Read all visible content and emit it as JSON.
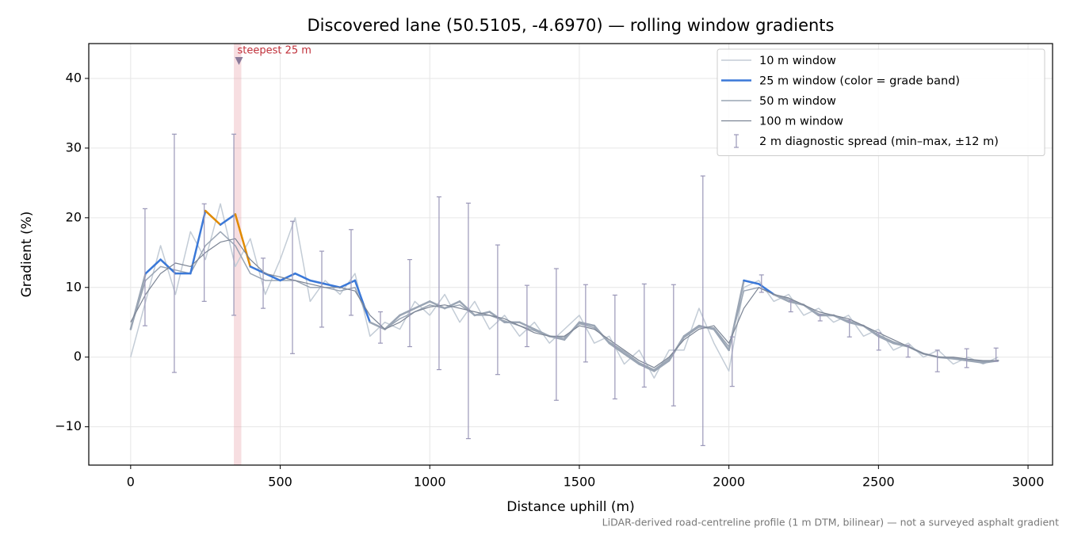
{
  "chart_data": {
    "type": "line",
    "title": "Discovered lane (50.5105, -4.6970) — rolling window gradients",
    "xlabel": "Distance uphill (m)",
    "ylabel": "Gradient (%)",
    "note": "LiDAR-derived road-centreline profile (1 m DTM, bilinear) — not a surveyed asphalt gradient",
    "xlim": [
      -140,
      3082
    ],
    "ylim": [
      -15.5,
      45
    ],
    "xticks": [
      0,
      500,
      1000,
      1500,
      2000,
      2500,
      3000
    ],
    "yticks": [
      {
        "value": -10,
        "label": "−10"
      },
      0,
      10,
      20,
      30,
      40
    ],
    "grid": true,
    "legend": "upper right",
    "x": [
      0,
      50,
      100,
      150,
      200,
      250,
      300,
      350,
      400,
      450,
      500,
      550,
      600,
      650,
      700,
      750,
      800,
      850,
      900,
      950,
      1000,
      1050,
      1100,
      1150,
      1200,
      1250,
      1300,
      1350,
      1400,
      1450,
      1500,
      1550,
      1600,
      1650,
      1700,
      1750,
      1800,
      1850,
      1900,
      1950,
      2000,
      2050,
      2100,
      2150,
      2200,
      2250,
      2300,
      2350,
      2400,
      2450,
      2500,
      2550,
      2600,
      2650,
      2700,
      2750,
      2800,
      2850,
      2900
    ],
    "series": [
      {
        "name": "10 m window",
        "color": "#c3ccd6",
        "width": 1.5,
        "values": [
          0,
          8,
          16,
          9,
          18,
          14,
          22,
          13,
          17,
          9,
          14,
          20,
          8,
          11,
          9,
          12,
          3,
          5,
          4,
          8,
          6,
          9,
          5,
          8,
          4,
          6,
          3,
          5,
          2,
          4,
          6,
          2,
          3,
          -1,
          1,
          -3,
          1,
          1,
          7,
          2,
          -2,
          10,
          11,
          8,
          9,
          6,
          7,
          5,
          6,
          3,
          4,
          1,
          2,
          0,
          1,
          -1,
          0,
          -1,
          0
        ]
      },
      {
        "name": "25 m window (color = grade band)",
        "color": "#3a78d8",
        "width": 2.5,
        "values": [
          4,
          12,
          14,
          12,
          12,
          21,
          19,
          20.5,
          13,
          12,
          11,
          12,
          11,
          10.5,
          10,
          11,
          5,
          4,
          6,
          7,
          8,
          7,
          8,
          6,
          6.5,
          5,
          5,
          4,
          3,
          2.5,
          5,
          4.5,
          2,
          0.5,
          -1,
          -2,
          -0.5,
          3,
          4.5,
          4,
          1,
          11,
          10.5,
          9,
          8,
          7.5,
          6,
          6,
          5,
          4.5,
          3,
          2,
          1.5,
          0.5,
          0,
          -0.2,
          -0.5,
          -0.8,
          -0.5
        ],
        "point_colors": [
          "#9aa5b4",
          "#3a78d8",
          "#3a78d8",
          "#3a78d8",
          "#3a78d8",
          "#e08a00",
          "#3a78d8",
          "#e08a00",
          "#3a78d8",
          "#3a78d8",
          "#3a78d8",
          "#3a78d8",
          "#3a78d8",
          "#3a78d8",
          "#3a78d8",
          "#3a78d8",
          "#9aa5b4",
          "#9aa5b4",
          "#9aa5b4",
          "#9aa5b4",
          "#9aa5b4",
          "#9aa5b4",
          "#9aa5b4",
          "#9aa5b4",
          "#9aa5b4",
          "#9aa5b4",
          "#9aa5b4",
          "#9aa5b4",
          "#9aa5b4",
          "#9aa5b4",
          "#9aa5b4",
          "#9aa5b4",
          "#9aa5b4",
          "#9aa5b4",
          "#9aa5b4",
          "#9aa5b4",
          "#9aa5b4",
          "#9aa5b4",
          "#9aa5b4",
          "#9aa5b4",
          "#9aa5b4",
          "#3a78d8",
          "#3a78d8",
          "#9aa5b4",
          "#9aa5b4",
          "#9aa5b4",
          "#9aa5b4",
          "#9aa5b4",
          "#9aa5b4",
          "#9aa5b4",
          "#9aa5b4",
          "#9aa5b4",
          "#9aa5b4",
          "#9aa5b4",
          "#9aa5b4",
          "#9aa5b4",
          "#9aa5b4",
          "#9aa5b4",
          "#9aa5b4"
        ]
      },
      {
        "name": "50 m window",
        "color": "#9aa5b4",
        "width": 1.5,
        "values": [
          4,
          11,
          13,
          12.5,
          12,
          16,
          18,
          16,
          12,
          11,
          11,
          11,
          10,
          10,
          9.5,
          10,
          5,
          4,
          5.5,
          6.5,
          7.5,
          7,
          7.5,
          6,
          6,
          5.2,
          4.5,
          3.8,
          3,
          2.8,
          4.8,
          4.2,
          2.2,
          0.8,
          -0.8,
          -1.8,
          -0.2,
          2.8,
          4.3,
          4.2,
          1.5,
          9.5,
          10,
          9,
          8.3,
          7.5,
          6.2,
          6,
          5.2,
          4.5,
          3.2,
          2.2,
          1.5,
          0.5,
          0,
          -0.1,
          -0.4,
          -0.6,
          -0.6
        ]
      },
      {
        "name": "100 m window",
        "color": "#7b8494",
        "width": 1.2,
        "values": [
          5,
          9,
          12,
          13.5,
          13,
          15,
          16.5,
          17,
          14,
          12,
          11.5,
          11,
          10.5,
          10,
          10,
          9.5,
          6,
          4,
          5,
          6.5,
          7.2,
          7.5,
          7,
          6.5,
          6,
          5.5,
          4.5,
          3.5,
          3,
          3,
          4.5,
          4,
          2.5,
          1,
          -0.5,
          -1.5,
          0,
          2.5,
          4,
          4.5,
          2,
          7,
          10,
          9,
          8.5,
          7.5,
          6.5,
          6,
          5.5,
          4.5,
          3.5,
          2.5,
          1.5,
          0.5,
          0,
          0,
          -0.3,
          -0.5,
          -0.5
        ]
      }
    ],
    "errorbars": {
      "name": "2 m diagnostic spread (min–max, ±12 m)",
      "color": "#9a97b8",
      "x": [
        48,
        146,
        246,
        345,
        443,
        541,
        639,
        737,
        835,
        933,
        1031,
        1129,
        1227,
        1325,
        1423,
        1521,
        1619,
        1717,
        1815,
        1913,
        2011,
        2109,
        2207,
        2305,
        2403,
        2501,
        2599,
        2697,
        2795,
        2893
      ],
      "low": [
        4.5,
        -2.2,
        8,
        6,
        7,
        0.5,
        4.3,
        6,
        2,
        1.5,
        -1.8,
        -11.7,
        -2.5,
        1.5,
        -6.2,
        -0.7,
        -6,
        -4.3,
        -7,
        -12.7,
        -4.2,
        9.3,
        6.5,
        5.2,
        2.9,
        1,
        0,
        -2.1,
        -1.5,
        -0.6
      ],
      "high": [
        21.3,
        32,
        22,
        32,
        14.2,
        19.5,
        15.2,
        18.3,
        6.5,
        14,
        23,
        22.1,
        16.1,
        10.3,
        12.7,
        10.4,
        8.9,
        10.5,
        10.4,
        26,
        2.9,
        11.8,
        8.1,
        6.1,
        5.3,
        3.5,
        1.7,
        1,
        1.2,
        1.3
      ]
    },
    "highlight": {
      "label": "steepest 25 m",
      "span": [
        345,
        370
      ],
      "x": 362,
      "y": 42.5,
      "color": "#e8a0a8"
    }
  }
}
